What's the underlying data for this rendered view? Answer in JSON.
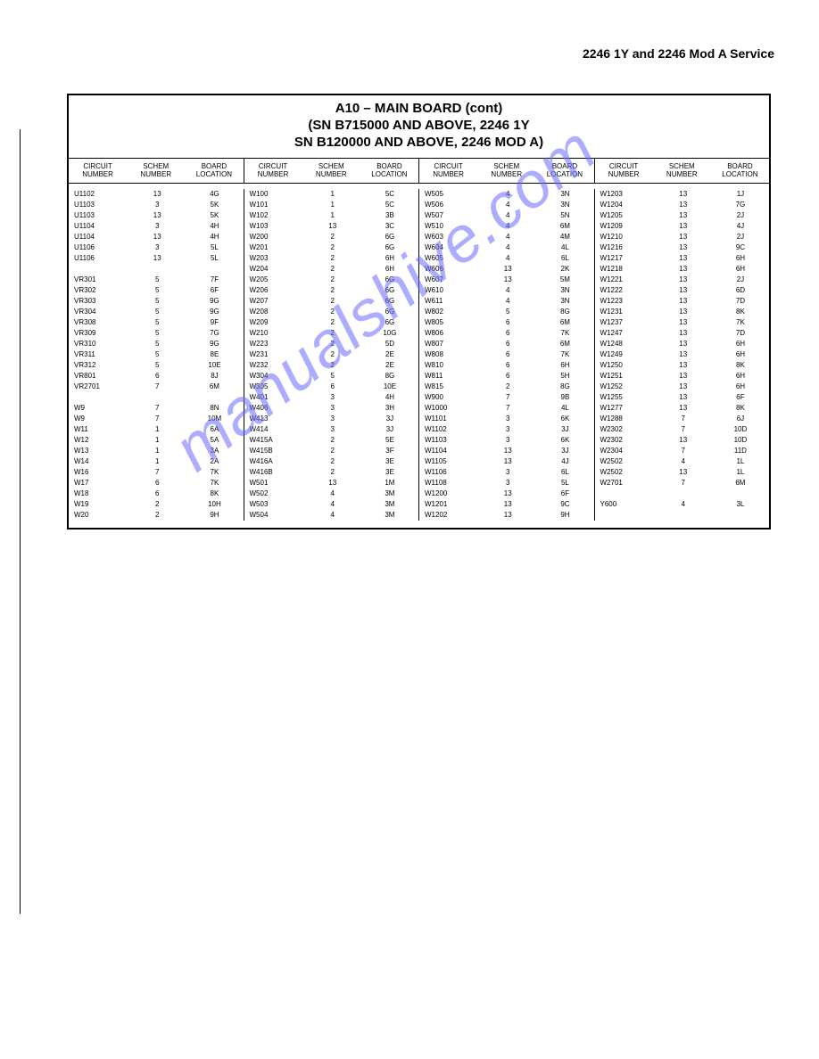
{
  "header": "2246 1Y and 2246 Mod A Service",
  "title_lines": [
    "A10 – MAIN BOARD (cont)",
    "(SN B715000 AND ABOVE, 2246 1Y",
    "SN B120000 AND ABOVE, 2246 MOD A)"
  ],
  "col_headers": [
    "CIRCUIT NUMBER",
    "SCHEM NUMBER",
    "BOARD LOCATION"
  ],
  "watermark": "manualshive.com",
  "groups": [
    [
      [
        "U1102",
        "13",
        "4G"
      ],
      [
        "U1103",
        "3",
        "5K"
      ],
      [
        "U1103",
        "13",
        "5K"
      ],
      [
        "U1104",
        "3",
        "4H"
      ],
      [
        "U1104",
        "13",
        "4H"
      ],
      [
        "U1106",
        "3",
        "5L"
      ],
      [
        "U1106",
        "13",
        "5L"
      ],
      [
        "",
        "",
        ""
      ],
      [
        "VR301",
        "5",
        "7F"
      ],
      [
        "VR302",
        "5",
        "6F"
      ],
      [
        "VR303",
        "5",
        "9G"
      ],
      [
        "VR304",
        "5",
        "9G"
      ],
      [
        "VR308",
        "5",
        "9F"
      ],
      [
        "VR309",
        "5",
        "7G"
      ],
      [
        "VR310",
        "5",
        "9G"
      ],
      [
        "VR311",
        "5",
        "8E"
      ],
      [
        "VR312",
        "5",
        "10E"
      ],
      [
        "VR801",
        "6",
        "8J"
      ],
      [
        "VR2701",
        "7",
        "6M"
      ],
      [
        "",
        "",
        ""
      ],
      [
        "W9",
        "7",
        "8N"
      ],
      [
        "W9",
        "7",
        "10M"
      ],
      [
        "W11",
        "1",
        "6A"
      ],
      [
        "W12",
        "1",
        "5A"
      ],
      [
        "W13",
        "1",
        "3A"
      ],
      [
        "W14",
        "1",
        "2A"
      ],
      [
        "W16",
        "7",
        "7K"
      ],
      [
        "W17",
        "6",
        "7K"
      ],
      [
        "W18",
        "6",
        "8K"
      ],
      [
        "W19",
        "2",
        "10H"
      ],
      [
        "W20",
        "2",
        "9H"
      ]
    ],
    [
      [
        "W100",
        "1",
        "5C"
      ],
      [
        "W101",
        "1",
        "5C"
      ],
      [
        "W102",
        "1",
        "3B"
      ],
      [
        "W103",
        "13",
        "3C"
      ],
      [
        "W200",
        "2",
        "6G"
      ],
      [
        "W201",
        "2",
        "6G"
      ],
      [
        "W203",
        "2",
        "6H"
      ],
      [
        "W204",
        "2",
        "6H"
      ],
      [
        "W205",
        "2",
        "6G"
      ],
      [
        "W206",
        "2",
        "6G"
      ],
      [
        "W207",
        "2",
        "6G"
      ],
      [
        "W208",
        "2",
        "6G"
      ],
      [
        "W209",
        "2",
        "6G"
      ],
      [
        "W210",
        "2",
        "10G"
      ],
      [
        "W223",
        "2",
        "5D"
      ],
      [
        "W231",
        "2",
        "2E"
      ],
      [
        "W232",
        "2",
        "2E"
      ],
      [
        "W304",
        "5",
        "8G"
      ],
      [
        "W305",
        "6",
        "10E"
      ],
      [
        "W401",
        "3",
        "4H"
      ],
      [
        "W406",
        "3",
        "3H"
      ],
      [
        "W413",
        "3",
        "3J"
      ],
      [
        "W414",
        "3",
        "3J"
      ],
      [
        "W415A",
        "2",
        "5E"
      ],
      [
        "W415B",
        "2",
        "3F"
      ],
      [
        "W416A",
        "2",
        "3E"
      ],
      [
        "W416B",
        "2",
        "3E"
      ],
      [
        "W501",
        "13",
        "1M"
      ],
      [
        "W502",
        "4",
        "3M"
      ],
      [
        "W503",
        "4",
        "3M"
      ],
      [
        "W504",
        "4",
        "3M"
      ]
    ],
    [
      [
        "W505",
        "4",
        "3N"
      ],
      [
        "W506",
        "4",
        "3N"
      ],
      [
        "W507",
        "4",
        "5N"
      ],
      [
        "W510",
        "4",
        "6M"
      ],
      [
        "W603",
        "4",
        "4M"
      ],
      [
        "W604",
        "4",
        "4L"
      ],
      [
        "W605",
        "4",
        "6L"
      ],
      [
        "W606",
        "13",
        "2K"
      ],
      [
        "W607",
        "13",
        "5M"
      ],
      [
        "W610",
        "4",
        "3N"
      ],
      [
        "W611",
        "4",
        "3N"
      ],
      [
        "W802",
        "5",
        "8G"
      ],
      [
        "W805",
        "6",
        "6M"
      ],
      [
        "W806",
        "6",
        "7K"
      ],
      [
        "W807",
        "6",
        "6M"
      ],
      [
        "W808",
        "6",
        "7K"
      ],
      [
        "W810",
        "6",
        "6H"
      ],
      [
        "W811",
        "6",
        "5H"
      ],
      [
        "W815",
        "2",
        "8G"
      ],
      [
        "W900",
        "7",
        "9B"
      ],
      [
        "W1000",
        "7",
        "4L"
      ],
      [
        "W1101",
        "3",
        "6K"
      ],
      [
        "W1102",
        "3",
        "3J"
      ],
      [
        "W1103",
        "3",
        "6K"
      ],
      [
        "W1104",
        "13",
        "3J"
      ],
      [
        "W1105",
        "13",
        "4J"
      ],
      [
        "W1106",
        "3",
        "6L"
      ],
      [
        "W1108",
        "3",
        "5L"
      ],
      [
        "W1200",
        "13",
        "6F"
      ],
      [
        "W1201",
        "13",
        "9C"
      ],
      [
        "W1202",
        "13",
        "9H"
      ]
    ],
    [
      [
        "W1203",
        "13",
        "1J"
      ],
      [
        "W1204",
        "13",
        "7G"
      ],
      [
        "W1205",
        "13",
        "2J"
      ],
      [
        "W1209",
        "13",
        "4J"
      ],
      [
        "W1210",
        "13",
        "2J"
      ],
      [
        "W1216",
        "13",
        "9C"
      ],
      [
        "W1217",
        "13",
        "6H"
      ],
      [
        "W1218",
        "13",
        "6H"
      ],
      [
        "W1221",
        "13",
        "2J"
      ],
      [
        "W1222",
        "13",
        "6D"
      ],
      [
        "W1223",
        "13",
        "7D"
      ],
      [
        "W1231",
        "13",
        "8K"
      ],
      [
        "W1237",
        "13",
        "7K"
      ],
      [
        "W1247",
        "13",
        "7D"
      ],
      [
        "W1248",
        "13",
        "6H"
      ],
      [
        "W1249",
        "13",
        "6H"
      ],
      [
        "W1250",
        "13",
        "8K"
      ],
      [
        "W1251",
        "13",
        "6H"
      ],
      [
        "W1252",
        "13",
        "6H"
      ],
      [
        "W1255",
        "13",
        "6F"
      ],
      [
        "W1277",
        "13",
        "8K"
      ],
      [
        "W1288",
        "7",
        "6J"
      ],
      [
        "W2302",
        "7",
        "10D"
      ],
      [
        "W2302",
        "13",
        "10D"
      ],
      [
        "W2304",
        "7",
        "11D"
      ],
      [
        "W2502",
        "4",
        "1L"
      ],
      [
        "W2502",
        "13",
        "1L"
      ],
      [
        "W2701",
        "7",
        "6M"
      ],
      [
        "",
        "",
        ""
      ],
      [
        "Y600",
        "4",
        "3L"
      ]
    ]
  ]
}
